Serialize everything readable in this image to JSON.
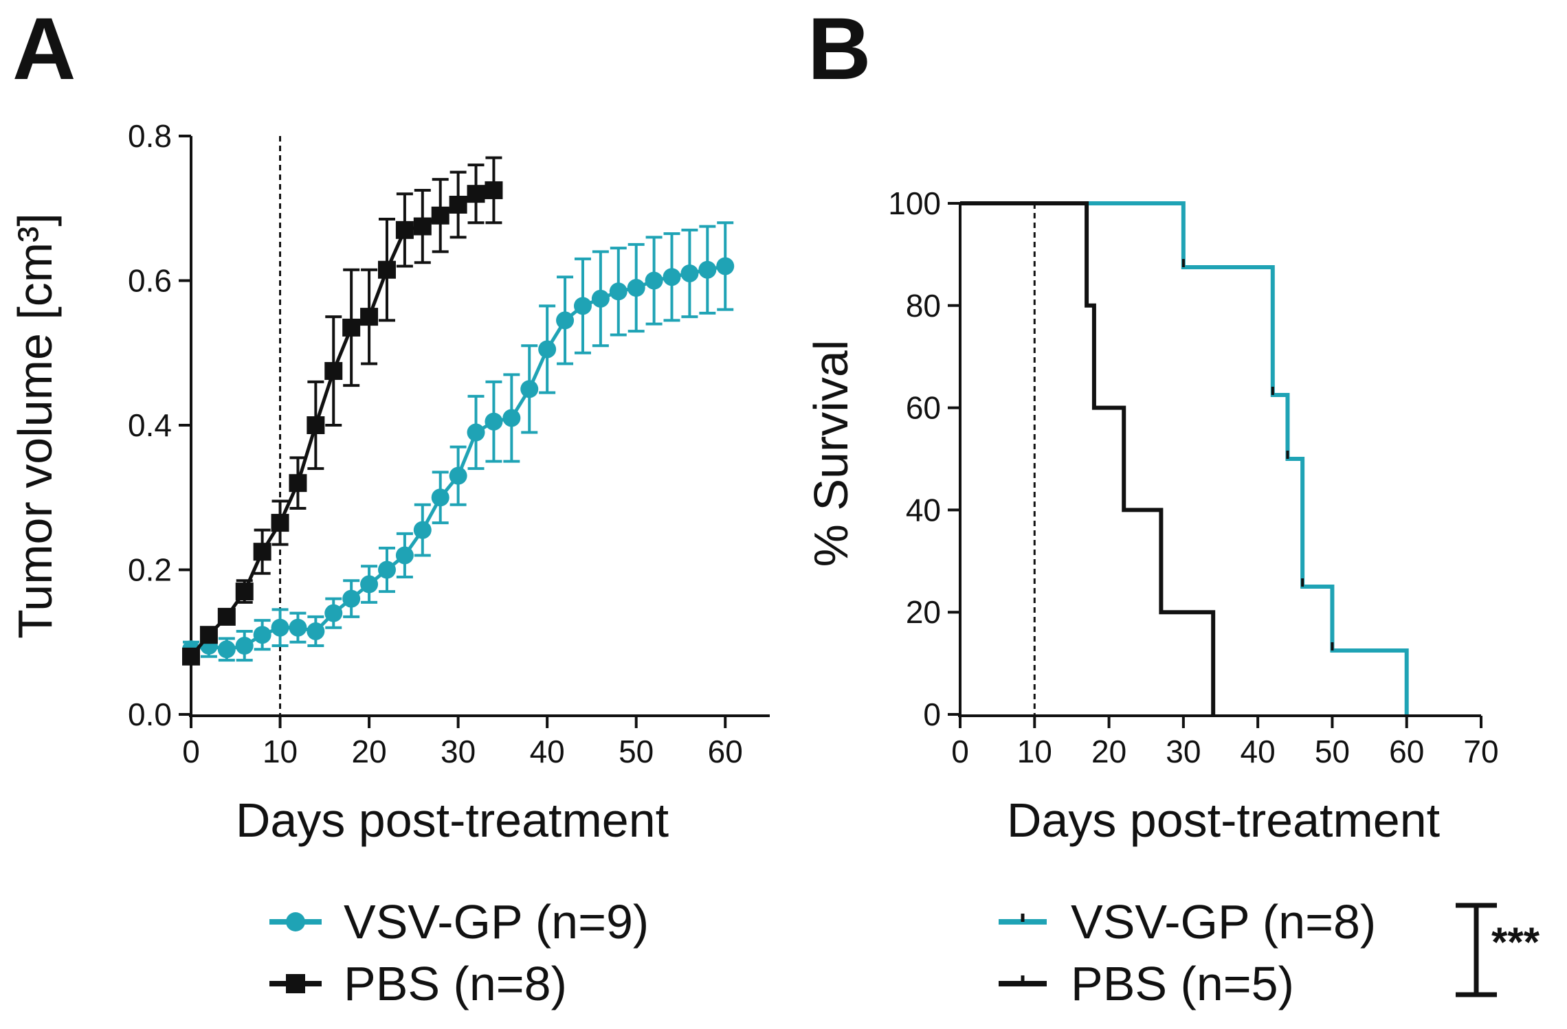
{
  "colors": {
    "vsv": "#1fa3b5",
    "pbs": "#111111"
  },
  "chart_data": [
    {
      "panel": "A",
      "type": "line",
      "xlabel": "Days post-treatment",
      "ylabel": "Tumor volume [cm³]",
      "xlim": [
        0,
        65
      ],
      "ylim": [
        0,
        0.8
      ],
      "xticks": [
        "0",
        "10",
        "20",
        "30",
        "40",
        "50",
        "60"
      ],
      "yticks": [
        "0.0",
        "0.2",
        "0.4",
        "0.6",
        "0.8"
      ],
      "reference_line_x": 10,
      "series": [
        {
          "name": "VSV-GP (n=9)",
          "color": "#1fa3b5",
          "marker": "circle",
          "x": [
            0,
            2,
            4,
            6,
            8,
            10,
            12,
            14,
            16,
            18,
            20,
            22,
            24,
            26,
            28,
            30,
            32,
            34,
            36,
            38,
            40,
            42,
            44,
            46,
            48,
            50,
            52,
            54,
            56,
            58,
            60
          ],
          "y": [
            0.09,
            0.095,
            0.09,
            0.095,
            0.11,
            0.12,
            0.12,
            0.115,
            0.14,
            0.16,
            0.18,
            0.2,
            0.22,
            0.255,
            0.3,
            0.33,
            0.39,
            0.405,
            0.41,
            0.45,
            0.505,
            0.545,
            0.565,
            0.575,
            0.585,
            0.59,
            0.6,
            0.605,
            0.61,
            0.615,
            0.62
          ],
          "err": [
            0.01,
            0.015,
            0.015,
            0.02,
            0.02,
            0.025,
            0.02,
            0.02,
            0.02,
            0.025,
            0.025,
            0.03,
            0.03,
            0.035,
            0.035,
            0.04,
            0.05,
            0.055,
            0.06,
            0.06,
            0.06,
            0.06,
            0.065,
            0.065,
            0.06,
            0.06,
            0.06,
            0.06,
            0.06,
            0.06,
            0.06
          ]
        },
        {
          "name": "PBS (n=8)",
          "color": "#111111",
          "marker": "square",
          "x": [
            0,
            2,
            4,
            6,
            8,
            10,
            12,
            14,
            16,
            18,
            20,
            22,
            24,
            26,
            28,
            30,
            32,
            34
          ],
          "y": [
            0.08,
            0.11,
            0.135,
            0.17,
            0.225,
            0.265,
            0.32,
            0.4,
            0.475,
            0.535,
            0.55,
            0.615,
            0.67,
            0.675,
            0.69,
            0.705,
            0.72,
            0.725
          ],
          "err": [
            0.01,
            0.01,
            0.01,
            0.015,
            0.03,
            0.03,
            0.035,
            0.06,
            0.075,
            0.08,
            0.065,
            0.07,
            0.05,
            0.05,
            0.05,
            0.045,
            0.04,
            0.045
          ]
        }
      ]
    },
    {
      "panel": "B",
      "type": "line",
      "subtype": "survival-step",
      "xlabel": "Days post-treatment",
      "ylabel": "% Survival",
      "xlim": [
        0,
        70
      ],
      "ylim": [
        0,
        100
      ],
      "xticks": [
        "0",
        "10",
        "20",
        "30",
        "40",
        "50",
        "60",
        "70"
      ],
      "yticks": [
        "0",
        "20",
        "40",
        "60",
        "80",
        "100"
      ],
      "reference_line_x": 10,
      "significance": "***",
      "series": [
        {
          "name": "VSV-GP (n=8)",
          "color": "#1fa3b5",
          "steps": [
            [
              0,
              100
            ],
            [
              30,
              87.5
            ],
            [
              42,
              62.5
            ],
            [
              44,
              50
            ],
            [
              46,
              25
            ],
            [
              50,
              12.5
            ],
            [
              60,
              0
            ]
          ]
        },
        {
          "name": "PBS (n=5)",
          "color": "#111111",
          "steps": [
            [
              0,
              100
            ],
            [
              17,
              80
            ],
            [
              18,
              60
            ],
            [
              22,
              40
            ],
            [
              27,
              20
            ],
            [
              34,
              0
            ]
          ]
        }
      ]
    }
  ]
}
